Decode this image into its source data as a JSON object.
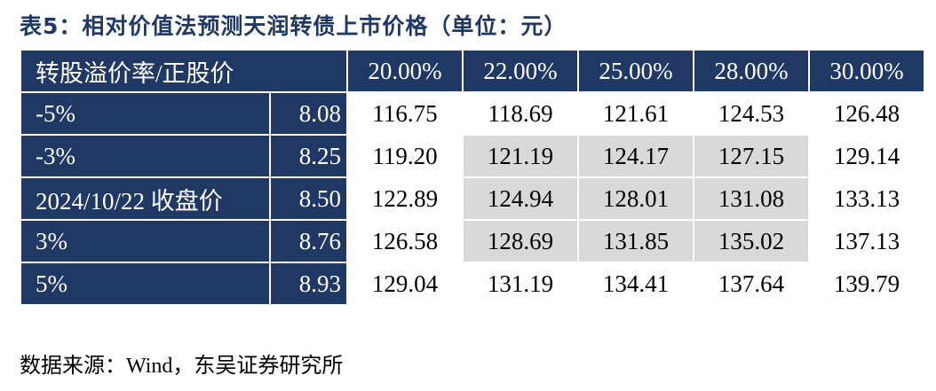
{
  "header": {
    "title": "表5：相对价值法预测天润转债上市价格（单位：元）"
  },
  "table": {
    "header": [
      "转股溢价率/正股价",
      "20.00%",
      "22.00%",
      "25.00%",
      "28.00%",
      "30.00%"
    ],
    "rows": [
      [
        "-5%",
        "8.08",
        "116.75",
        "118.69",
        "121.61",
        "124.53",
        "126.48"
      ],
      [
        "-3%",
        "8.25",
        "119.20",
        "121.19",
        "124.17",
        "127.15",
        "129.14"
      ],
      [
        "2024/10/22 收盘价",
        "8.50",
        "122.89",
        "124.94",
        "128.01",
        "131.08",
        "133.13"
      ],
      [
        "3%",
        "8.76",
        "126.58",
        "128.69",
        "131.85",
        "135.02",
        "137.13"
      ],
      [
        "5%",
        "8.93",
        "129.04",
        "131.19",
        "134.41",
        "137.64",
        "139.79"
      ]
    ]
  },
  "footer": {
    "source": "数据来源：Wind，东吴证券研究所"
  }
}
